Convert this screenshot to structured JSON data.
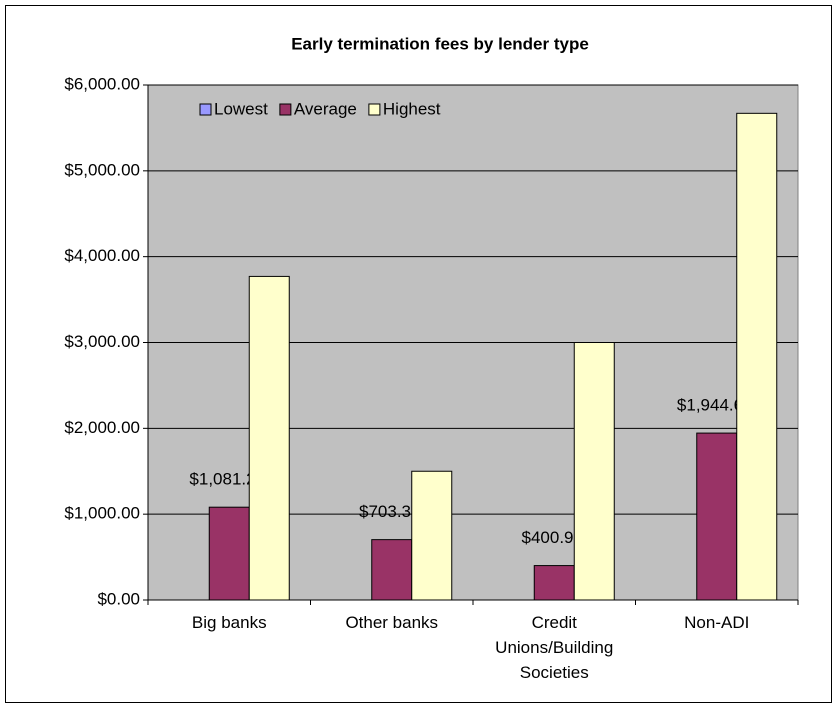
{
  "chart_data": {
    "type": "bar",
    "title": "Early termination fees by lender type",
    "categories": [
      "Big banks",
      "Other banks",
      "Credit Unions/Building Societies",
      "Non-ADI"
    ],
    "series": [
      {
        "name": "Lowest",
        "color": "#9999ff",
        "values": [
          0,
          0,
          0,
          0
        ]
      },
      {
        "name": "Average",
        "color": "#993366",
        "values": [
          1081.25,
          703.33,
          400.91,
          1944.62
        ],
        "value_labels": [
          "$1,081.25",
          "$703.33",
          "$400.91",
          "$1,944.62"
        ]
      },
      {
        "name": "Highest",
        "color": "#ffffcc",
        "values": [
          3770,
          1500,
          3000,
          5670
        ]
      }
    ],
    "ylim": [
      0,
      6000
    ],
    "yticks": [
      {
        "value": 0,
        "label": "$0.00"
      },
      {
        "value": 1000,
        "label": "$1,000.00"
      },
      {
        "value": 2000,
        "label": "$2,000.00"
      },
      {
        "value": 3000,
        "label": "$3,000.00"
      },
      {
        "value": 4000,
        "label": "$4,000.00"
      },
      {
        "value": 5000,
        "label": "$5,000.00"
      },
      {
        "value": 6000,
        "label": "$6,000.00"
      }
    ],
    "grid": true,
    "legend": "top-left"
  }
}
